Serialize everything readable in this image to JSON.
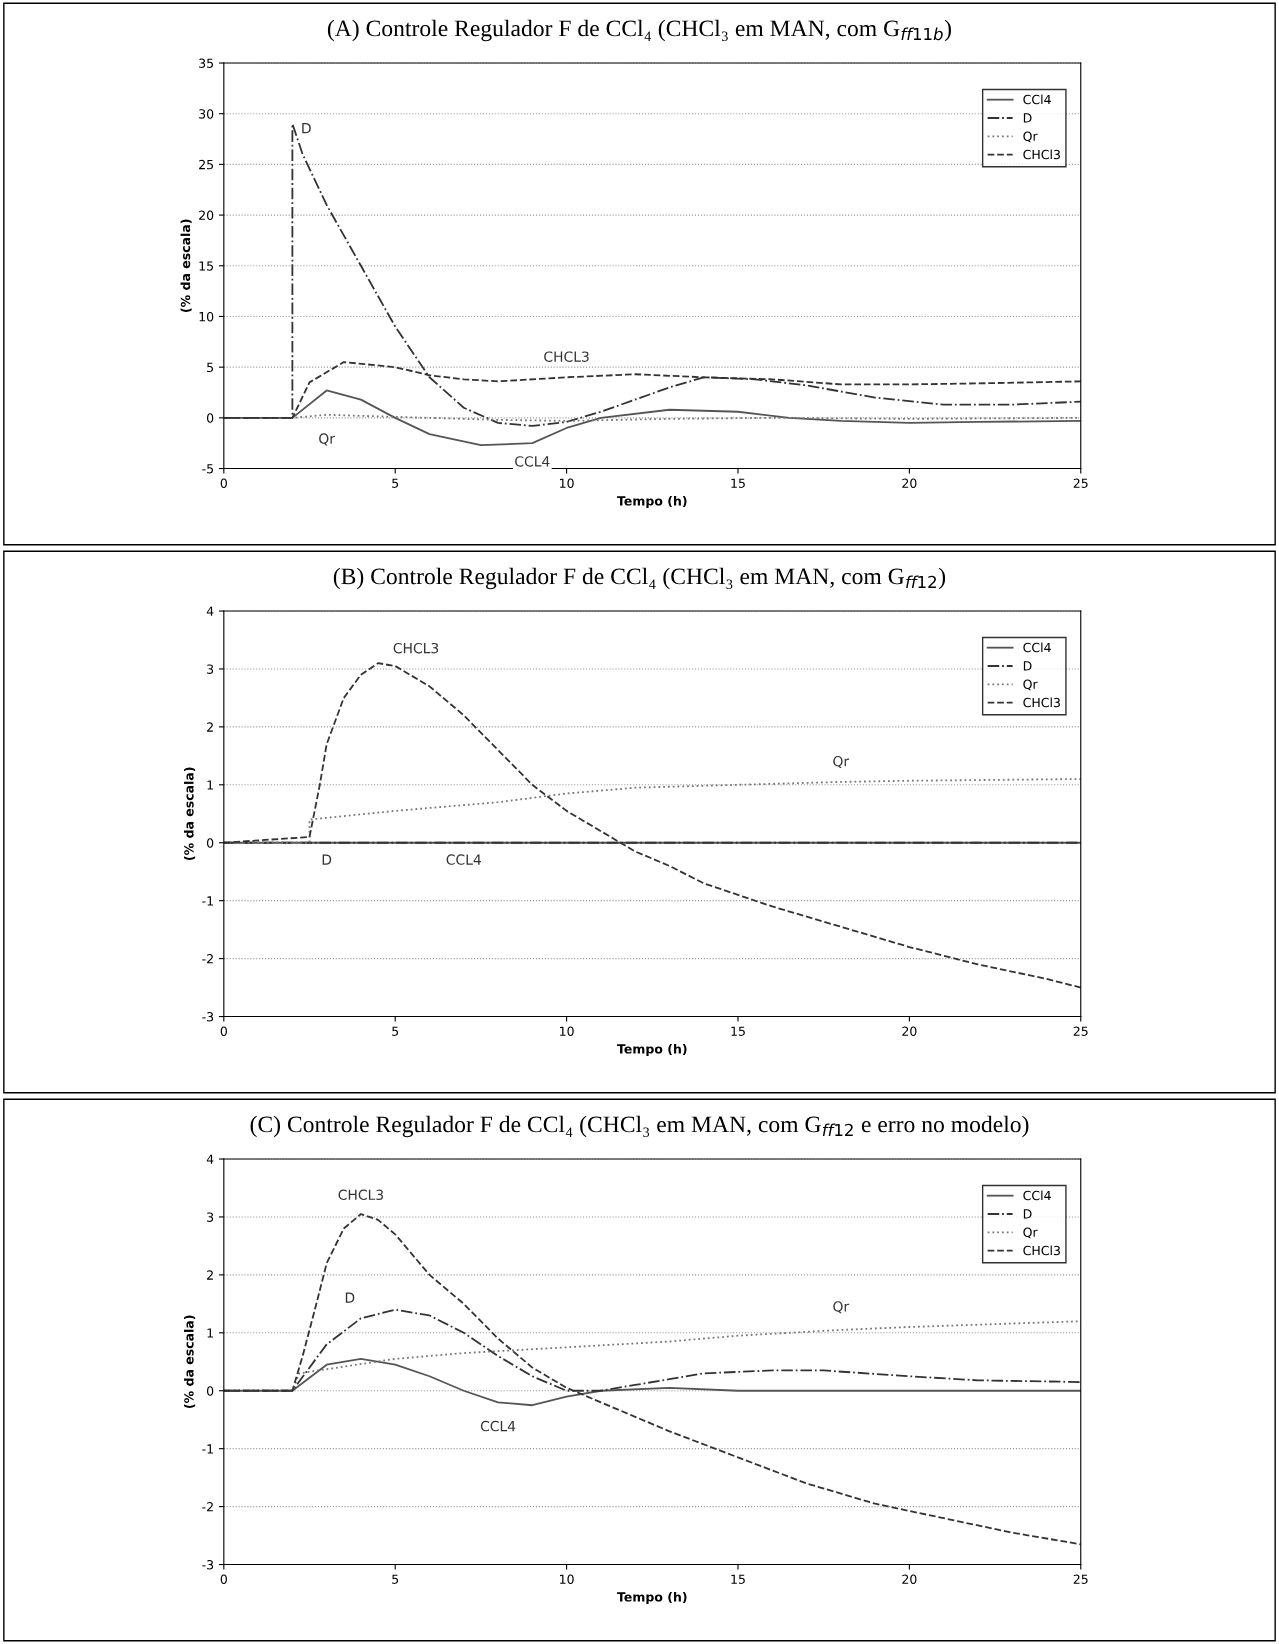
{
  "chart_data": [
    {
      "type": "line",
      "title": "(A) Controle Regulador F de CCl₄ (CHCl₃ em MAN, com G$_{ff11b}$)",
      "xlabel": "Tempo (h)",
      "ylabel": "(% da escala)",
      "xlim": [
        0,
        25
      ],
      "xticks": [
        0,
        5,
        10,
        15,
        20,
        25
      ],
      "ylim": [
        -5,
        35
      ],
      "yticks": [
        -5,
        0,
        5,
        10,
        15,
        20,
        25,
        30,
        35
      ],
      "grid": "y",
      "legend": "top right",
      "series": [
        {
          "name": "CCl4",
          "color": "#555555",
          "line_style": "solid",
          "x": [
            0,
            2,
            3,
            4,
            5,
            6,
            7.5,
            9,
            10,
            11,
            13,
            15,
            16.5,
            18,
            20,
            22,
            25
          ],
          "values": [
            0,
            0,
            2.7,
            1.8,
            0,
            -1.6,
            -2.7,
            -2.5,
            -1,
            0,
            0.8,
            0.6,
            0,
            -0.3,
            -0.5,
            -0.4,
            -0.3
          ]
        },
        {
          "name": "D",
          "color": "#333333",
          "line_style": "dashdot",
          "x": [
            0,
            2,
            2,
            2.3,
            3,
            4,
            5,
            6,
            7,
            8,
            9,
            10,
            11,
            12,
            13,
            14,
            15.5,
            17,
            19,
            21,
            23,
            25
          ],
          "values": [
            0,
            0,
            29,
            26,
            21,
            15,
            9,
            4,
            1,
            -0.5,
            -0.8,
            -0.4,
            0.6,
            1.8,
            3,
            4,
            3.8,
            3.2,
            2,
            1.3,
            1.3,
            1.6
          ]
        },
        {
          "name": "Qr",
          "color": "#777777",
          "line_style": "dotted",
          "x": [
            0,
            2,
            3,
            5,
            8,
            10,
            13,
            16,
            20,
            25
          ],
          "values": [
            0,
            0,
            0.3,
            0.1,
            -0.2,
            -0.3,
            -0.1,
            0,
            -0.1,
            0
          ]
        },
        {
          "name": "CHCl3",
          "color": "#333333",
          "line_style": "dashed",
          "x": [
            0,
            2,
            2.5,
            3.5,
            5,
            6,
            7,
            8,
            10,
            12,
            14,
            16,
            18,
            20,
            22,
            25
          ],
          "values": [
            0,
            0,
            3.5,
            5.5,
            5,
            4.2,
            3.8,
            3.6,
            4,
            4.3,
            4,
            3.8,
            3.3,
            3.3,
            3.4,
            3.6
          ]
        }
      ],
      "annotations": [
        {
          "text": "D",
          "x": 2,
          "y": 29
        },
        {
          "text": "CHCL3",
          "x": 10,
          "y": 4
        },
        {
          "text": "Qr",
          "x": 3,
          "y": 0.3
        },
        {
          "text": "CCL4",
          "x": 9,
          "y": -2.5
        }
      ]
    },
    {
      "type": "line",
      "title": "(B) Controle Regulador F de CCl₄ (CHCl₃ em MAN, com G$_{ff12}$)",
      "xlabel": "Tempo (h)",
      "ylabel": "(% da escala)",
      "xlim": [
        0,
        25
      ],
      "xticks": [
        0,
        5,
        10,
        15,
        20,
        25
      ],
      "ylim": [
        -3,
        4
      ],
      "yticks": [
        -3,
        -2,
        -1,
        0,
        1,
        2,
        3,
        4
      ],
      "grid": "y",
      "legend": "top right",
      "series": [
        {
          "name": "CCl4",
          "color": "#555555",
          "line_style": "solid",
          "x": [
            0,
            7,
            25
          ],
          "values": [
            0,
            0,
            0
          ]
        },
        {
          "name": "D",
          "color": "#333333",
          "line_style": "dashdot",
          "x": [
            0,
            3,
            25
          ],
          "values": [
            0,
            0,
            0
          ]
        },
        {
          "name": "Qr",
          "color": "#777777",
          "line_style": "dotted",
          "x": [
            0,
            2.5,
            2.5,
            5,
            8,
            10,
            12,
            15,
            18,
            20,
            25
          ],
          "values": [
            0,
            0,
            0.4,
            0.55,
            0.7,
            0.85,
            0.95,
            1,
            1.05,
            1.07,
            1.1
          ]
        },
        {
          "name": "CHCl3",
          "color": "#333333",
          "line_style": "dashed",
          "x": [
            0,
            2.5,
            2.8,
            3,
            3.5,
            4,
            4.5,
            5,
            6,
            7,
            8,
            9,
            10,
            11,
            12,
            13,
            14,
            15,
            16,
            18,
            20,
            22,
            24,
            25
          ],
          "values": [
            0,
            0.1,
            1,
            1.7,
            2.5,
            2.9,
            3.1,
            3.05,
            2.7,
            2.2,
            1.6,
            1,
            0.55,
            0.2,
            -0.15,
            -0.4,
            -0.7,
            -0.9,
            -1.1,
            -1.45,
            -1.8,
            -2.1,
            -2.35,
            -2.5
          ]
        }
      ],
      "annotations": [
        {
          "text": "CHCL3",
          "x": 5,
          "y": 3.05
        },
        {
          "text": "Qr",
          "x": 18,
          "y": 1.05
        },
        {
          "text": "D",
          "x": 3,
          "y": 0
        },
        {
          "text": "CCL4",
          "x": 7,
          "y": 0
        }
      ]
    },
    {
      "type": "line",
      "title": "(C) Controle Regulador F de CCl₄ (CHCl₃ em MAN, com G$_{ff12}$ e erro no modelo)",
      "xlabel": "Tempo (h)",
      "ylabel": "(% da escala)",
      "xlim": [
        0,
        25
      ],
      "xticks": [
        0,
        5,
        10,
        15,
        20,
        25
      ],
      "ylim": [
        -3,
        4
      ],
      "yticks": [
        -3,
        -2,
        -1,
        0,
        1,
        2,
        3,
        4
      ],
      "grid": "y",
      "legend": "top right",
      "series": [
        {
          "name": "CCl4",
          "color": "#555555",
          "line_style": "solid",
          "x": [
            0,
            2,
            3,
            4,
            5,
            6,
            7,
            8,
            9,
            10,
            11,
            13,
            15,
            18,
            25
          ],
          "values": [
            0,
            0,
            0.45,
            0.55,
            0.45,
            0.25,
            0,
            -0.2,
            -0.25,
            -0.1,
            0,
            0.05,
            0,
            0,
            0
          ]
        },
        {
          "name": "D",
          "color": "#333333",
          "line_style": "dashdot",
          "x": [
            0,
            2,
            3,
            4,
            5,
            6,
            7,
            8,
            9,
            10,
            11,
            12,
            13,
            14,
            16,
            17.5,
            20,
            22,
            25
          ],
          "values": [
            0,
            0,
            0.8,
            1.25,
            1.4,
            1.3,
            1,
            0.6,
            0.25,
            0,
            0,
            0.1,
            0.2,
            0.3,
            0.35,
            0.35,
            0.25,
            0.18,
            0.15
          ]
        },
        {
          "name": "Qr",
          "color": "#777777",
          "line_style": "dotted",
          "x": [
            0,
            2,
            2.2,
            5,
            7,
            10,
            13,
            15,
            18,
            20,
            25
          ],
          "values": [
            0,
            0,
            0.3,
            0.55,
            0.65,
            0.75,
            0.85,
            0.95,
            1.05,
            1.1,
            1.2
          ]
        },
        {
          "name": "CHCl3",
          "color": "#333333",
          "line_style": "dashed",
          "x": [
            0,
            2,
            2.3,
            2.7,
            3,
            3.5,
            4,
            4.5,
            5,
            6,
            7,
            8,
            9,
            10,
            11,
            12,
            13,
            15,
            17,
            19,
            21,
            23,
            25
          ],
          "values": [
            0,
            0,
            0.6,
            1.5,
            2.2,
            2.8,
            3.05,
            2.95,
            2.7,
            2,
            1.5,
            0.9,
            0.4,
            0.05,
            -0.2,
            -0.45,
            -0.7,
            -1.15,
            -1.6,
            -1.95,
            -2.2,
            -2.45,
            -2.65
          ]
        }
      ],
      "annotations": [
        {
          "text": "CHCL3",
          "x": 4,
          "y": 3.05
        },
        {
          "text": "D",
          "x": 4,
          "y": 1.25
        },
        {
          "text": "Qr",
          "x": 18,
          "y": 1.05
        },
        {
          "text": "CCL4",
          "x": 8,
          "y": -0.2
        }
      ]
    }
  ]
}
